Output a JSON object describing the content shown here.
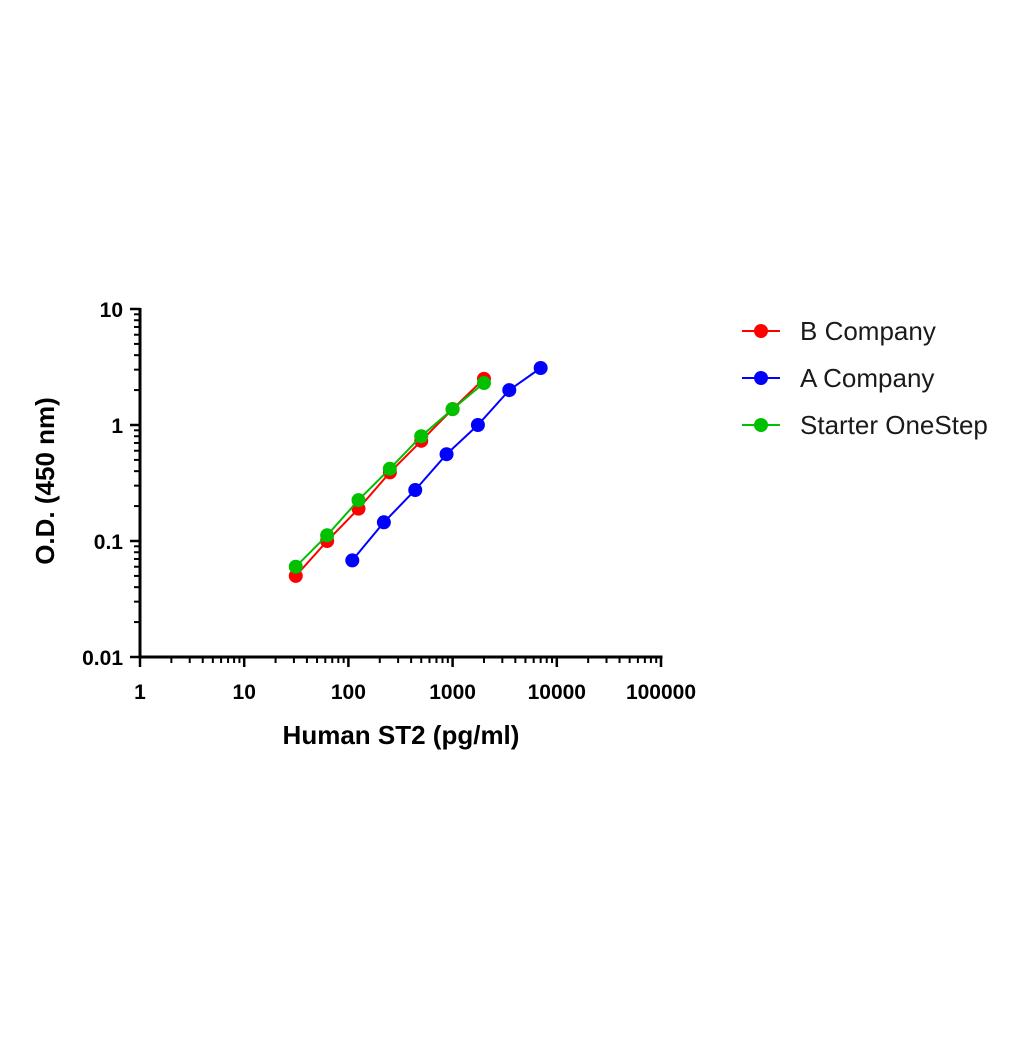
{
  "chart_data": {
    "type": "line",
    "title": "",
    "xlabel": "Human ST2 (pg/ml)",
    "ylabel": "O.D. (450 nm)",
    "x_scale": "log",
    "y_scale": "log",
    "xlim": [
      1,
      100000
    ],
    "ylim": [
      0.01,
      10
    ],
    "x_ticks": [
      "1",
      "10",
      "100",
      "1000",
      "10000",
      "100000"
    ],
    "y_ticks": [
      "0.01",
      "0.1",
      "1",
      "10"
    ],
    "grid": false,
    "legend_position": "right",
    "series": [
      {
        "name": "B Company",
        "color": "#ff0000",
        "x": [
          31.25,
          62.5,
          125,
          250,
          500,
          1000,
          2000
        ],
        "y": [
          0.05,
          0.1,
          0.19,
          0.39,
          0.73,
          1.37,
          2.5
        ]
      },
      {
        "name": "A Company",
        "color": "#0000ff",
        "x": [
          109,
          219,
          438,
          875,
          1750,
          3500,
          7000
        ],
        "y": [
          0.068,
          0.145,
          0.275,
          0.56,
          1.0,
          2.0,
          3.1
        ]
      },
      {
        "name": "Starter OneStep",
        "color": "#00c000",
        "x": [
          31.25,
          62.5,
          125,
          250,
          500,
          1000,
          2000
        ],
        "y": [
          0.06,
          0.112,
          0.225,
          0.42,
          0.8,
          1.37,
          2.3
        ]
      }
    ]
  }
}
